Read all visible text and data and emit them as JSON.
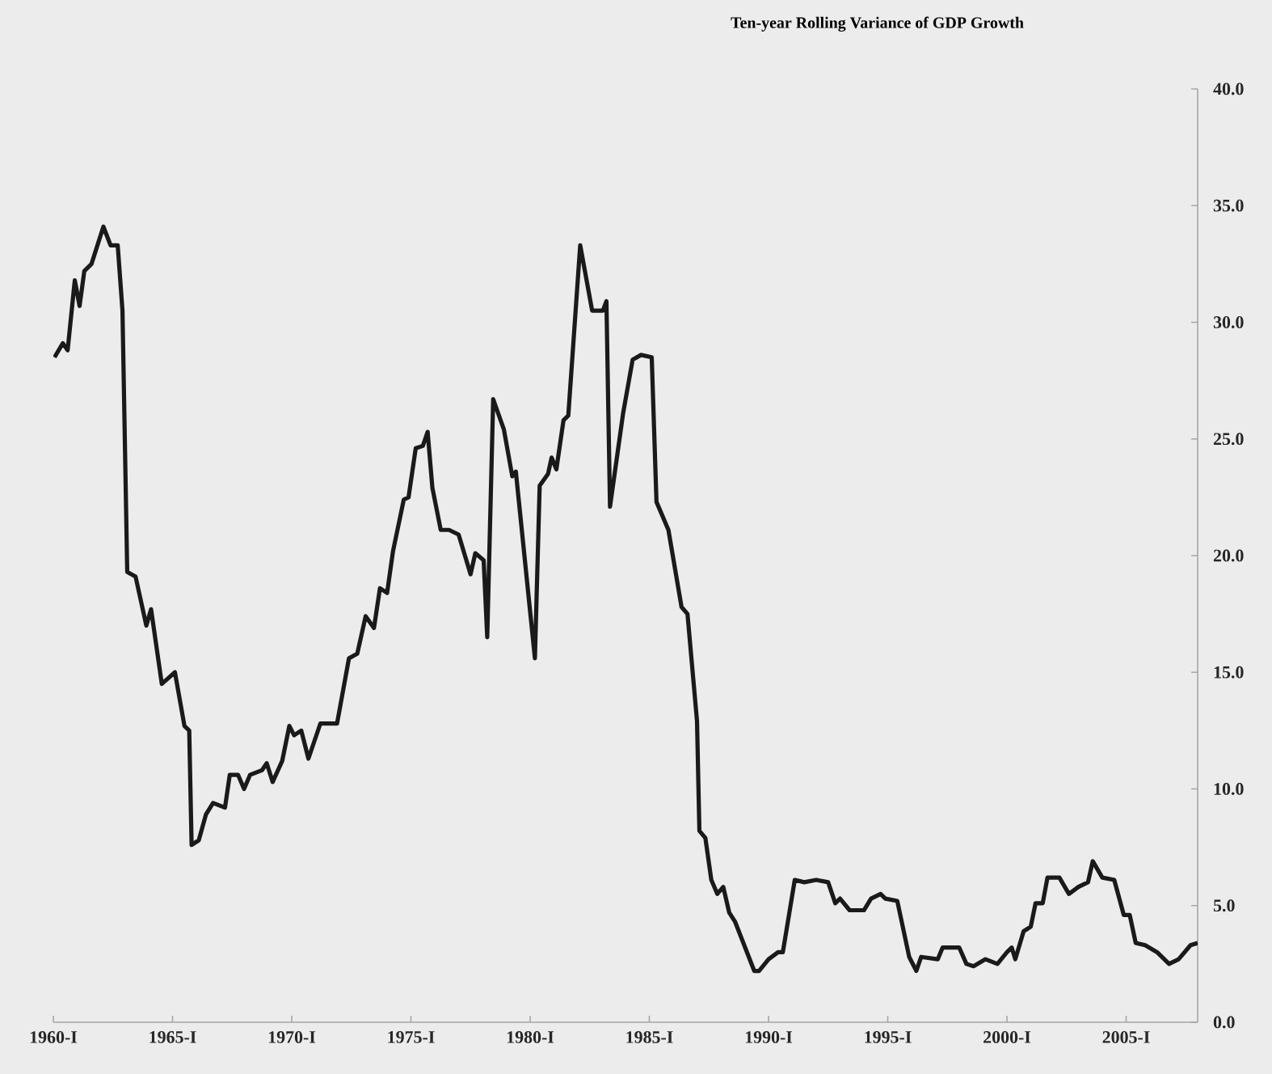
{
  "chart_data": {
    "type": "line",
    "title": "Ten-year Rolling Variance of GDP Growth",
    "series": [
      {
        "color": "#1a1a1a",
        "x": [
          1960.05,
          1960.4,
          1960.6,
          1960.9,
          1961.1,
          1961.3,
          1961.6,
          1962.1,
          1962.4,
          1962.7,
          1962.9,
          1963.1,
          1963.45,
          1963.9,
          1964.1,
          1964.55,
          1965.1,
          1965.5,
          1965.7,
          1965.8,
          1966.1,
          1966.4,
          1966.7,
          1967.2,
          1967.4,
          1967.75,
          1968.0,
          1968.25,
          1968.75,
          1968.95,
          1969.2,
          1969.6,
          1969.9,
          1970.1,
          1970.4,
          1970.7,
          1971.2,
          1971.9,
          1972.4,
          1972.75,
          1973.1,
          1973.45,
          1973.7,
          1974.0,
          1974.25,
          1974.7,
          1974.9,
          1975.2,
          1975.5,
          1975.7,
          1975.9,
          1976.25,
          1976.6,
          1977.0,
          1977.5,
          1977.7,
          1978.05,
          1978.2,
          1978.45,
          1978.9,
          1979.25,
          1979.4,
          1980.2,
          1980.4,
          1980.75,
          1980.9,
          1981.1,
          1981.4,
          1981.6,
          1982.1,
          1982.6,
          1983.05,
          1983.2,
          1983.35,
          1983.9,
          1984.3,
          1984.65,
          1985.1,
          1985.3,
          1985.8,
          1986.35,
          1986.6,
          1987.0,
          1987.1,
          1987.35,
          1987.6,
          1987.85,
          1988.1,
          1988.35,
          1988.6,
          1989.4,
          1989.6,
          1990.0,
          1990.4,
          1990.6,
          1991.1,
          1991.5,
          1992.0,
          1992.5,
          1992.8,
          1993.0,
          1993.4,
          1994.0,
          1994.3,
          1994.7,
          1994.9,
          1995.4,
          1995.9,
          1996.2,
          1996.4,
          1997.1,
          1997.3,
          1998.0,
          1998.3,
          1998.6,
          1999.1,
          1999.6,
          2000.0,
          2000.2,
          2000.35,
          2000.7,
          2001.0,
          2001.2,
          2001.5,
          2001.7,
          2002.2,
          2002.6,
          2003.0,
          2003.4,
          2003.6,
          2004.0,
          2004.5,
          2004.9,
          2005.15,
          2005.4,
          2005.8,
          2006.3,
          2006.8,
          2007.2,
          2007.7,
          2008.0
        ],
        "values": [
          28.5,
          29.1,
          28.8,
          31.8,
          30.7,
          32.2,
          32.5,
          34.1,
          33.3,
          33.3,
          30.5,
          19.3,
          19.1,
          17.0,
          17.7,
          14.5,
          15.0,
          12.7,
          12.5,
          7.6,
          7.8,
          8.9,
          9.4,
          9.2,
          10.6,
          10.6,
          10.0,
          10.6,
          10.8,
          11.1,
          10.3,
          11.2,
          12.7,
          12.3,
          12.5,
          11.3,
          12.8,
          12.8,
          15.6,
          15.8,
          17.4,
          16.9,
          18.6,
          18.4,
          20.2,
          22.4,
          22.5,
          24.6,
          24.7,
          25.3,
          22.9,
          21.1,
          21.1,
          20.9,
          19.2,
          20.1,
          19.8,
          16.5,
          26.7,
          25.4,
          23.4,
          23.6,
          15.6,
          23.0,
          23.5,
          24.2,
          23.7,
          25.8,
          26.0,
          33.3,
          30.5,
          30.5,
          30.9,
          22.1,
          26.1,
          28.4,
          28.6,
          28.5,
          22.3,
          21.1,
          17.8,
          17.5,
          12.9,
          8.2,
          7.9,
          6.1,
          5.5,
          5.8,
          4.7,
          4.3,
          2.2,
          2.2,
          2.7,
          3.0,
          3.0,
          6.1,
          6.0,
          6.1,
          6.0,
          5.1,
          5.3,
          4.8,
          4.8,
          5.3,
          5.5,
          5.3,
          5.2,
          2.8,
          2.2,
          2.8,
          2.7,
          3.2,
          3.2,
          2.5,
          2.4,
          2.7,
          2.5,
          3.0,
          3.2,
          2.7,
          3.9,
          4.1,
          5.1,
          5.1,
          6.2,
          6.2,
          5.5,
          5.8,
          6.0,
          6.9,
          6.2,
          6.1,
          4.6,
          4.6,
          3.4,
          3.3,
          3.0,
          2.5,
          2.7,
          3.3,
          3.4
        ]
      }
    ],
    "xlim": [
      1960,
      2008
    ],
    "xticks": [
      {
        "value": 1960,
        "label": "1960-I"
      },
      {
        "value": 1965,
        "label": "1965-I"
      },
      {
        "value": 1970,
        "label": "1970-I"
      },
      {
        "value": 1975,
        "label": "1975-I"
      },
      {
        "value": 1980,
        "label": "1980-I"
      },
      {
        "value": 1985,
        "label": "1985-I"
      },
      {
        "value": 1990,
        "label": "1990-I"
      },
      {
        "value": 1995,
        "label": "1995-I"
      },
      {
        "value": 2000,
        "label": "2000-I"
      },
      {
        "value": 2005,
        "label": "2005-I"
      }
    ],
    "ylim": [
      0,
      40
    ],
    "yticks": [
      {
        "value": 0,
        "label": "0.0"
      },
      {
        "value": 5,
        "label": "5.0"
      },
      {
        "value": 10,
        "label": "10.0"
      },
      {
        "value": 15,
        "label": "15.0"
      },
      {
        "value": 20,
        "label": "20.0"
      },
      {
        "value": 25,
        "label": "25.0"
      },
      {
        "value": 30,
        "label": "30.0"
      },
      {
        "value": 35,
        "label": "35.0"
      },
      {
        "value": 40,
        "label": "40.0"
      }
    ],
    "grid": false,
    "marker": "none",
    "line_style": "solid"
  }
}
